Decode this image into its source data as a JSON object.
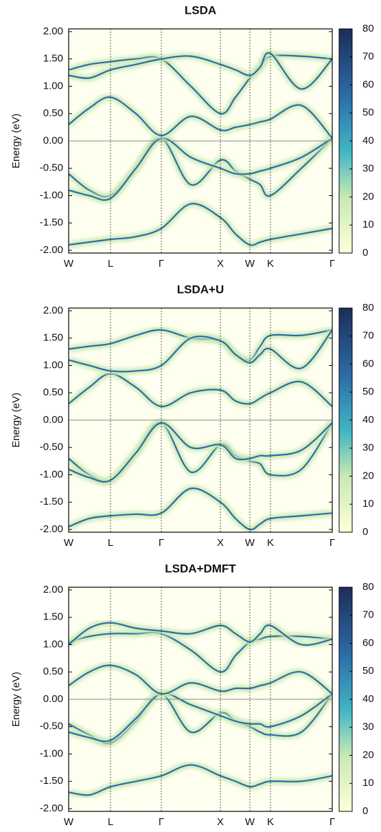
{
  "chart_data": [
    {
      "type": "band",
      "title": "LSDA",
      "ylabel": "Energy (eV)",
      "band_color": "#2c6ca8",
      "halo_color": "#c9e8b4",
      "xlim": [
        0,
        3.84
      ],
      "xticks": [
        {
          "value": 0,
          "label": "W"
        },
        {
          "value": 0.61,
          "label": "L"
        },
        {
          "value": 1.35,
          "label": "Γ"
        },
        {
          "value": 2.21,
          "label": "X"
        },
        {
          "value": 2.64,
          "label": "W"
        },
        {
          "value": 2.94,
          "label": "K"
        },
        {
          "value": 3.84,
          "label": "Γ"
        }
      ],
      "ylim": [
        -2.05,
        2.05
      ],
      "yticks": [
        {
          "value": 2,
          "label": "2.00"
        },
        {
          "value": 1.5,
          "label": "1.50"
        },
        {
          "value": 1,
          "label": "1.00"
        },
        {
          "value": 0.5,
          "label": "0.50"
        },
        {
          "value": 0,
          "label": "0.00"
        },
        {
          "value": -0.5,
          "label": "-0.50"
        },
        {
          "value": -1,
          "label": "-1.00"
        },
        {
          "value": -1.5,
          "label": "-1.50"
        },
        {
          "value": -2,
          "label": "-2.00"
        }
      ],
      "clim": [
        0,
        80
      ],
      "cticks": [
        0,
        10,
        20,
        30,
        40,
        50,
        60,
        70,
        80
      ],
      "x": [
        0,
        0.3,
        0.61,
        0.98,
        1.35,
        1.78,
        2.21,
        2.43,
        2.64,
        2.79,
        2.94,
        3.39,
        3.84
      ],
      "series": [
        {
          "values": [
            -1.9,
            -1.85,
            -1.8,
            -1.75,
            -1.6,
            -1.15,
            -1.4,
            -1.7,
            -1.9,
            -1.85,
            -1.8,
            -1.7,
            -1.6
          ]
        },
        {
          "values": [
            -0.6,
            -0.9,
            -1.0,
            -0.5,
            0.05,
            -0.8,
            -0.35,
            -0.55,
            -0.7,
            -0.8,
            -1.0,
            -0.5,
            0.05
          ]
        },
        {
          "values": [
            -0.9,
            -1.0,
            -1.05,
            -0.5,
            0.05,
            -0.3,
            -0.5,
            -0.6,
            -0.6,
            -0.55,
            -0.5,
            -0.3,
            0.05
          ]
        },
        {
          "values": [
            0.3,
            0.6,
            0.8,
            0.5,
            0.1,
            0.45,
            0.2,
            0.25,
            0.3,
            0.35,
            0.4,
            0.65,
            0.05
          ]
        },
        {
          "values": [
            1.3,
            1.4,
            1.45,
            1.5,
            1.5,
            1.0,
            0.5,
            0.8,
            1.15,
            1.35,
            1.55,
            1.55,
            1.5
          ]
        },
        {
          "values": [
            1.2,
            1.15,
            1.3,
            1.4,
            1.5,
            1.55,
            1.4,
            1.3,
            1.2,
            1.35,
            1.6,
            0.95,
            1.5
          ]
        }
      ]
    },
    {
      "type": "band",
      "title": "LSDA+U",
      "ylabel": "Energy (eV)",
      "band_color": "#2c6ca8",
      "halo_color": "#c9e8b4",
      "xlim": [
        0,
        3.84
      ],
      "xticks": [
        {
          "value": 0,
          "label": "W"
        },
        {
          "value": 0.61,
          "label": "L"
        },
        {
          "value": 1.35,
          "label": "Γ"
        },
        {
          "value": 2.21,
          "label": "X"
        },
        {
          "value": 2.64,
          "label": "W"
        },
        {
          "value": 2.94,
          "label": "K"
        },
        {
          "value": 3.84,
          "label": "Γ"
        }
      ],
      "ylim": [
        -2.05,
        2.05
      ],
      "yticks": [
        {
          "value": 2,
          "label": "2.00"
        },
        {
          "value": 1.5,
          "label": "1.50"
        },
        {
          "value": 1,
          "label": "1.00"
        },
        {
          "value": 0.5,
          "label": "0.50"
        },
        {
          "value": 0,
          "label": "0.00"
        },
        {
          "value": -0.5,
          "label": "-0.50"
        },
        {
          "value": -1,
          "label": "-1.00"
        },
        {
          "value": -1.5,
          "label": "-1.50"
        },
        {
          "value": -2,
          "label": "-2.00"
        }
      ],
      "clim": [
        0,
        80
      ],
      "cticks": [
        0,
        10,
        20,
        30,
        40,
        50,
        60,
        70,
        80
      ],
      "x": [
        0,
        0.3,
        0.61,
        0.98,
        1.35,
        1.78,
        2.21,
        2.43,
        2.64,
        2.79,
        2.94,
        3.39,
        3.84
      ],
      "series": [
        {
          "values": [
            -1.95,
            -1.8,
            -1.75,
            -1.72,
            -1.7,
            -1.25,
            -1.5,
            -1.8,
            -2.0,
            -1.9,
            -1.8,
            -1.75,
            -1.7
          ]
        },
        {
          "values": [
            -0.7,
            -1.0,
            -1.1,
            -0.6,
            -0.05,
            -0.95,
            -0.45,
            -0.65,
            -0.75,
            -0.8,
            -1.0,
            -0.9,
            -0.05
          ]
        },
        {
          "values": [
            -0.9,
            -1.05,
            -1.1,
            -0.6,
            -0.05,
            -0.5,
            -0.45,
            -0.7,
            -0.7,
            -0.65,
            -0.65,
            -0.55,
            -0.05
          ]
        },
        {
          "values": [
            0.3,
            0.6,
            0.85,
            0.6,
            0.25,
            0.5,
            0.55,
            0.35,
            0.3,
            0.4,
            0.5,
            0.7,
            0.25
          ]
        },
        {
          "values": [
            1.3,
            1.35,
            1.4,
            1.55,
            1.65,
            1.5,
            1.45,
            1.2,
            1.1,
            1.35,
            1.55,
            1.55,
            1.65
          ]
        },
        {
          "values": [
            1.1,
            1.0,
            0.9,
            0.9,
            1.0,
            1.5,
            1.45,
            1.2,
            1.05,
            1.2,
            1.3,
            0.95,
            1.65
          ]
        }
      ]
    },
    {
      "type": "band",
      "title": "LSDA+DMFT",
      "ylabel": "Energy (eV)",
      "band_color": "#2c6ca8",
      "halo_color": "#c9e8b4",
      "xlim": [
        0,
        3.84
      ],
      "xticks": [
        {
          "value": 0,
          "label": "W"
        },
        {
          "value": 0.61,
          "label": "L"
        },
        {
          "value": 1.35,
          "label": "Γ"
        },
        {
          "value": 2.21,
          "label": "X"
        },
        {
          "value": 2.64,
          "label": "W"
        },
        {
          "value": 2.94,
          "label": "K"
        },
        {
          "value": 3.84,
          "label": "Γ"
        }
      ],
      "ylim": [
        -2.05,
        2.05
      ],
      "yticks": [
        {
          "value": 2,
          "label": "2.00"
        },
        {
          "value": 1.5,
          "label": "1.50"
        },
        {
          "value": 1,
          "label": "1.00"
        },
        {
          "value": 0.5,
          "label": "0.50"
        },
        {
          "value": 0,
          "label": "0.00"
        },
        {
          "value": -0.5,
          "label": "-0.50"
        },
        {
          "value": -1,
          "label": "-1.00"
        },
        {
          "value": -1.5,
          "label": "-1.50"
        },
        {
          "value": -2,
          "label": "-2.00"
        }
      ],
      "clim": [
        0,
        80
      ],
      "cticks": [
        0,
        10,
        20,
        30,
        40,
        50,
        60,
        70,
        80
      ],
      "x": [
        0,
        0.3,
        0.61,
        0.98,
        1.35,
        1.78,
        2.21,
        2.43,
        2.64,
        2.79,
        2.94,
        3.39,
        3.84
      ],
      "series": [
        {
          "values": [
            -1.7,
            -1.75,
            -1.6,
            -1.5,
            -1.4,
            -1.2,
            -1.4,
            -1.5,
            -1.6,
            -1.55,
            -1.5,
            -1.5,
            -1.4
          ]
        },
        {
          "values": [
            -0.45,
            -0.65,
            -0.8,
            -0.4,
            0.1,
            -0.6,
            -0.25,
            -0.4,
            -0.5,
            -0.6,
            -0.65,
            -0.6,
            0.1
          ]
        },
        {
          "values": [
            -0.6,
            -0.7,
            -0.75,
            -0.35,
            0.1,
            -0.1,
            -0.3,
            -0.4,
            -0.45,
            -0.45,
            -0.5,
            -0.3,
            0.1
          ]
        },
        {
          "values": [
            0.25,
            0.5,
            0.62,
            0.45,
            0.1,
            0.3,
            0.15,
            0.2,
            0.2,
            0.25,
            0.3,
            0.5,
            0.1
          ]
        },
        {
          "values": [
            1.05,
            1.15,
            1.2,
            1.2,
            1.2,
            0.9,
            0.5,
            0.8,
            1.05,
            1.1,
            1.15,
            1.15,
            1.1
          ]
        },
        {
          "values": [
            1.0,
            1.3,
            1.4,
            1.3,
            1.25,
            1.2,
            1.35,
            1.2,
            1.05,
            1.2,
            1.35,
            1.0,
            1.1
          ]
        }
      ]
    }
  ]
}
